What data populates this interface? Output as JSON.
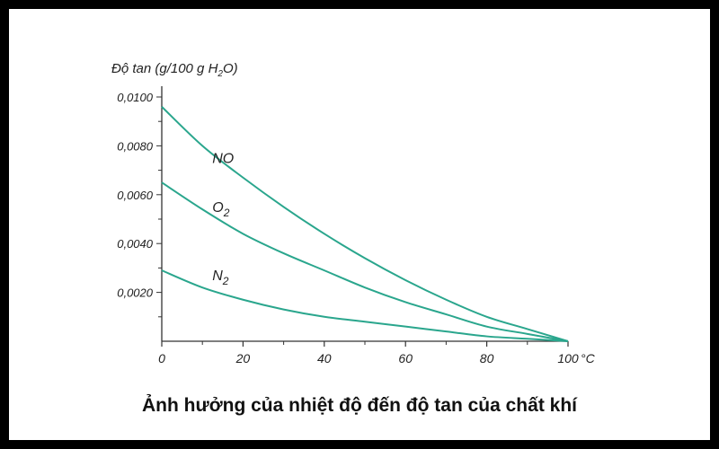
{
  "chart_data": {
    "type": "line",
    "title": "Ảnh hưởng của nhiệt độ đến độ tan của chất khí",
    "ylabel": {
      "prefix": "Độ tan (g/100 g  H",
      "sub": "2",
      "suffix": "O)"
    },
    "x_unit": "°C",
    "xlim": [
      0,
      100
    ],
    "ylim": [
      0,
      0.01
    ],
    "x_ticks": [
      0,
      20,
      40,
      60,
      80,
      100
    ],
    "x_tick_labels": [
      "0",
      "20",
      "40",
      "60",
      "80",
      "100"
    ],
    "y_ticks": [
      0.002,
      0.004,
      0.006,
      0.008,
      0.01
    ],
    "y_tick_labels": [
      "0,0020",
      "0,0040",
      "0,0060",
      "0,0080",
      "0,0100"
    ],
    "grid": false,
    "line_color": "#2aa68d",
    "series": [
      {
        "name": "NO",
        "label_main": "NO",
        "label_sub": "",
        "x": [
          0,
          10,
          20,
          30,
          40,
          50,
          60,
          70,
          80,
          90,
          100
        ],
        "y": [
          0.0096,
          0.008,
          0.0067,
          0.0055,
          0.0044,
          0.0034,
          0.0025,
          0.0017,
          0.001,
          0.0005,
          0.0
        ],
        "label_at": {
          "x": 12,
          "y": 0.0073
        }
      },
      {
        "name": "O2",
        "label_main": "O",
        "label_sub": "2",
        "x": [
          0,
          10,
          20,
          30,
          40,
          50,
          60,
          70,
          80,
          90,
          100
        ],
        "y": [
          0.0065,
          0.0054,
          0.0044,
          0.0036,
          0.0029,
          0.0022,
          0.0016,
          0.0011,
          0.0006,
          0.0003,
          0.0
        ],
        "label_at": {
          "x": 12,
          "y": 0.0053
        }
      },
      {
        "name": "N2",
        "label_main": "N",
        "label_sub": "2",
        "x": [
          0,
          10,
          20,
          30,
          40,
          50,
          60,
          70,
          80,
          90,
          100
        ],
        "y": [
          0.0029,
          0.0022,
          0.0017,
          0.0013,
          0.001,
          0.0008,
          0.0006,
          0.0004,
          0.0002,
          0.0001,
          0.0
        ],
        "label_at": {
          "x": 12,
          "y": 0.0025
        }
      }
    ]
  }
}
